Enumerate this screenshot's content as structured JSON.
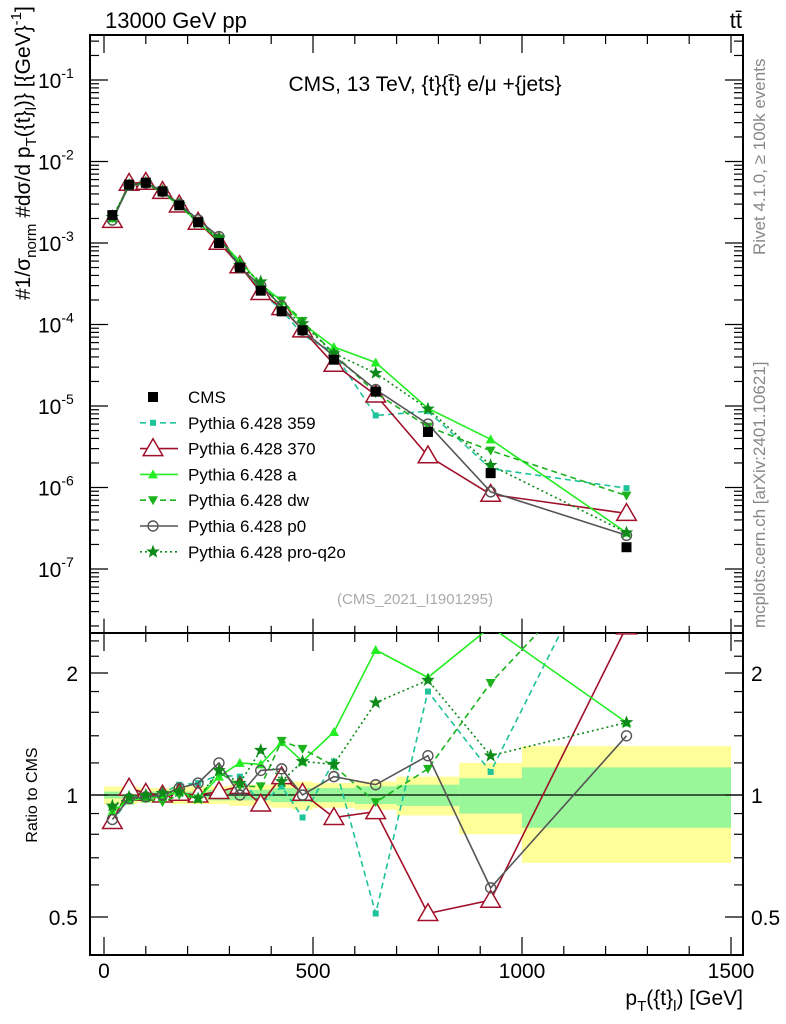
{
  "header": {
    "left": "13000 GeV pp",
    "right": "tt̄"
  },
  "side_labels": {
    "rivet": "Rivet 4.1.0, ≥ 100k events",
    "mcplots": "mcplots.cern.ch [arXiv:2401.10621]"
  },
  "watermark": "(CMS_2021_I1901295)",
  "chart_data": {
    "type": "line",
    "title": "CMS, 13 TeV, {t}{t̄} e/μ +{jets}",
    "xlabel": "p_T({t}_l) [GeV]",
    "xlabel_parts": {
      "p": "p",
      "sub1": "T",
      "mid": "({t}",
      "sub2": "l",
      "end": ") [GeV]"
    },
    "ylabel_parts": {
      "a": "#",
      "frac1": "1/σ",
      "sub1": "norm",
      "b": " #",
      "frac2": "dσ/d p",
      "sub2": "T",
      "c": "({t}",
      "sub3": "l",
      "d": ")} [{GeV}",
      "sup": "-1",
      "e": "]"
    },
    "ratio_ylabel": "Ratio to CMS",
    "xlim": [
      -50,
      1500
    ],
    "ylim": [
      1.6e-08,
      0.35
    ],
    "yscale": "log",
    "ratio_ylim": [
      0.4,
      2.5
    ],
    "x_ticks": [
      "0",
      "500",
      "1000",
      "1500"
    ],
    "y_ticks": [
      {
        "base": "10",
        "exp": "-1"
      },
      {
        "base": "10",
        "exp": "-2"
      },
      {
        "base": "10",
        "exp": "-3"
      },
      {
        "base": "10",
        "exp": "-4"
      },
      {
        "base": "10",
        "exp": "-5"
      },
      {
        "base": "10",
        "exp": "-6"
      },
      {
        "base": "10",
        "exp": "-7"
      }
    ],
    "ratio_ticks": [
      "0.5",
      "1",
      "2"
    ],
    "bin_edges": [
      0,
      40,
      80,
      120,
      160,
      200,
      250,
      300,
      350,
      400,
      450,
      500,
      600,
      700,
      850,
      1000,
      1500
    ],
    "x": [
      20,
      60,
      100,
      140,
      180,
      225,
      275,
      325,
      375,
      425,
      475,
      550,
      650,
      775,
      925,
      1250
    ],
    "data": {
      "name": "CMS",
      "values": [
        0.0022,
        0.0052,
        0.0055,
        0.0043,
        0.0029,
        0.0018,
        0.001,
        0.0005,
        0.00026,
        0.000145,
        8.5e-05,
        3.7e-05,
        1.5e-05,
        4.8e-06,
        1.5e-06,
        1.85e-07
      ],
      "band_total": [
        0.05,
        0.05,
        0.04,
        0.04,
        0.05,
        0.05,
        0.05,
        0.06,
        0.06,
        0.07,
        0.08,
        0.07,
        0.08,
        0.11,
        0.2,
        0.32
      ],
      "band_stat": [
        0.02,
        0.02,
        0.02,
        0.02,
        0.02,
        0.02,
        0.03,
        0.03,
        0.03,
        0.04,
        0.04,
        0.04,
        0.05,
        0.06,
        0.1,
        0.17
      ]
    },
    "series": [
      {
        "name": "Pythia 6.428 359",
        "color": "#1ec39a",
        "marker": "square-small",
        "dash": "6,4",
        "ratio": [
          0.86,
          0.98,
          1.0,
          1.01,
          1.06,
          1.07,
          1.12,
          1.11,
          0.95,
          1.05,
          0.88,
          1.21,
          0.51,
          1.8,
          1.14,
          5.3
        ]
      },
      {
        "name": "Pythia 6.428 370",
        "color": "#a0102a",
        "marker": "triangle-open",
        "dash": "",
        "ratio": [
          0.86,
          1.04,
          1.01,
          1.0,
          1.01,
          1.0,
          1.02,
          1.05,
          0.95,
          1.11,
          1.01,
          0.88,
          0.91,
          0.51,
          0.55,
          2.6
        ]
      },
      {
        "name": "Pythia 6.428 a",
        "color": "#22ee22",
        "marker": "triangle-filled",
        "dash": "",
        "ratio": [
          0.91,
          0.97,
          0.98,
          0.99,
          1.02,
          0.98,
          1.11,
          1.2,
          1.19,
          1.35,
          1.21,
          1.43,
          2.28,
          1.95,
          2.6,
          1.51
        ]
      },
      {
        "name": "Pythia 6.428 dw",
        "color": "#1db31d",
        "marker": "triangle-down",
        "dash": "6,4",
        "ratio": [
          0.92,
          0.98,
          0.98,
          0.96,
          1.0,
          0.98,
          1.14,
          1.05,
          1.05,
          1.36,
          1.3,
          1.18,
          0.96,
          1.16,
          1.89,
          4.3
        ]
      },
      {
        "name": "Pythia 6.428 p0",
        "color": "#555555",
        "marker": "circle-open",
        "dash": "",
        "ratio": [
          0.87,
          0.98,
          0.99,
          1.0,
          1.04,
          1.07,
          1.2,
          1.0,
          1.15,
          1.16,
          1.0,
          1.11,
          1.06,
          1.25,
          0.59,
          1.4
        ]
      },
      {
        "name": "Pythia 6.428 pro-q2o",
        "color": "#0f8a1a",
        "marker": "star",
        "dash": "2,3",
        "ratio": [
          0.94,
          0.99,
          1.0,
          1.01,
          1.02,
          0.98,
          1.15,
          1.07,
          1.29,
          1.08,
          1.21,
          1.19,
          1.69,
          1.92,
          1.25,
          1.51
        ]
      }
    ],
    "legend_placement": "center-left"
  }
}
